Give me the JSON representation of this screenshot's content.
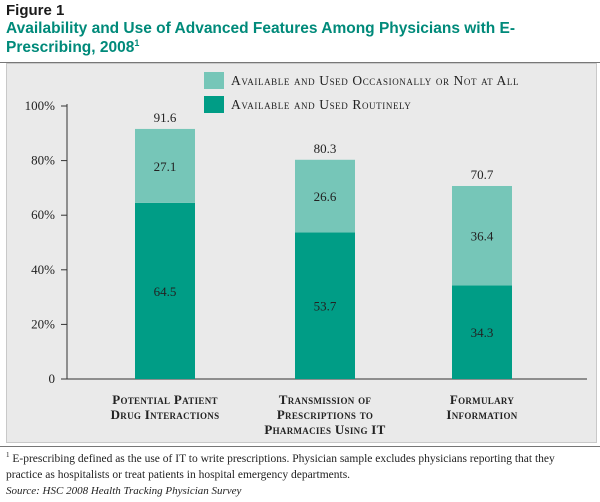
{
  "figure": {
    "label": "Figure 1",
    "title": "Availability and Use of Advanced Features Among Physicians with E-Prescribing, 2008",
    "title_sup": "1"
  },
  "footnote": {
    "marker": "1",
    "text": "E-prescribing defined as the use of IT to write prescriptions. Physician sample excludes physicians reporting that they practice as hospitalists or treat patients in hospital emergency departments."
  },
  "source": "Source: HSC 2008 Health Tracking Physician Survey",
  "colors": {
    "routine": "#009d86",
    "occasional": "#76c6b8",
    "background": "#eaeaea",
    "title": "#008a7a"
  },
  "chart_data": {
    "type": "bar",
    "stacked": true,
    "categories": [
      [
        "Potential Patient",
        "Drug Interactions"
      ],
      [
        "Transmission of",
        "Prescriptions to",
        "Pharmacies Using IT"
      ],
      [
        "Formulary",
        "Information"
      ]
    ],
    "series": [
      {
        "name": "Available and Used Routinely",
        "values": [
          64.5,
          53.7,
          34.3
        ],
        "labels": [
          "64.5",
          "53.7",
          "34.3"
        ]
      },
      {
        "name": "Available and Used Occasionally or Not at All",
        "values": [
          27.1,
          26.6,
          36.4
        ],
        "labels": [
          "27.1",
          "26.6",
          "36.4"
        ]
      }
    ],
    "totals": [
      "91.6",
      "80.3",
      "70.7"
    ],
    "totals_values": [
      91.6,
      80.3,
      70.7
    ],
    "ylim": [
      0,
      100
    ],
    "yticks": [
      0,
      20,
      40,
      60,
      80,
      100
    ],
    "ytick_labels": [
      "0",
      "20%",
      "40%",
      "60%",
      "80%",
      "100%"
    ],
    "legend_position": "top-right",
    "grid": false
  }
}
